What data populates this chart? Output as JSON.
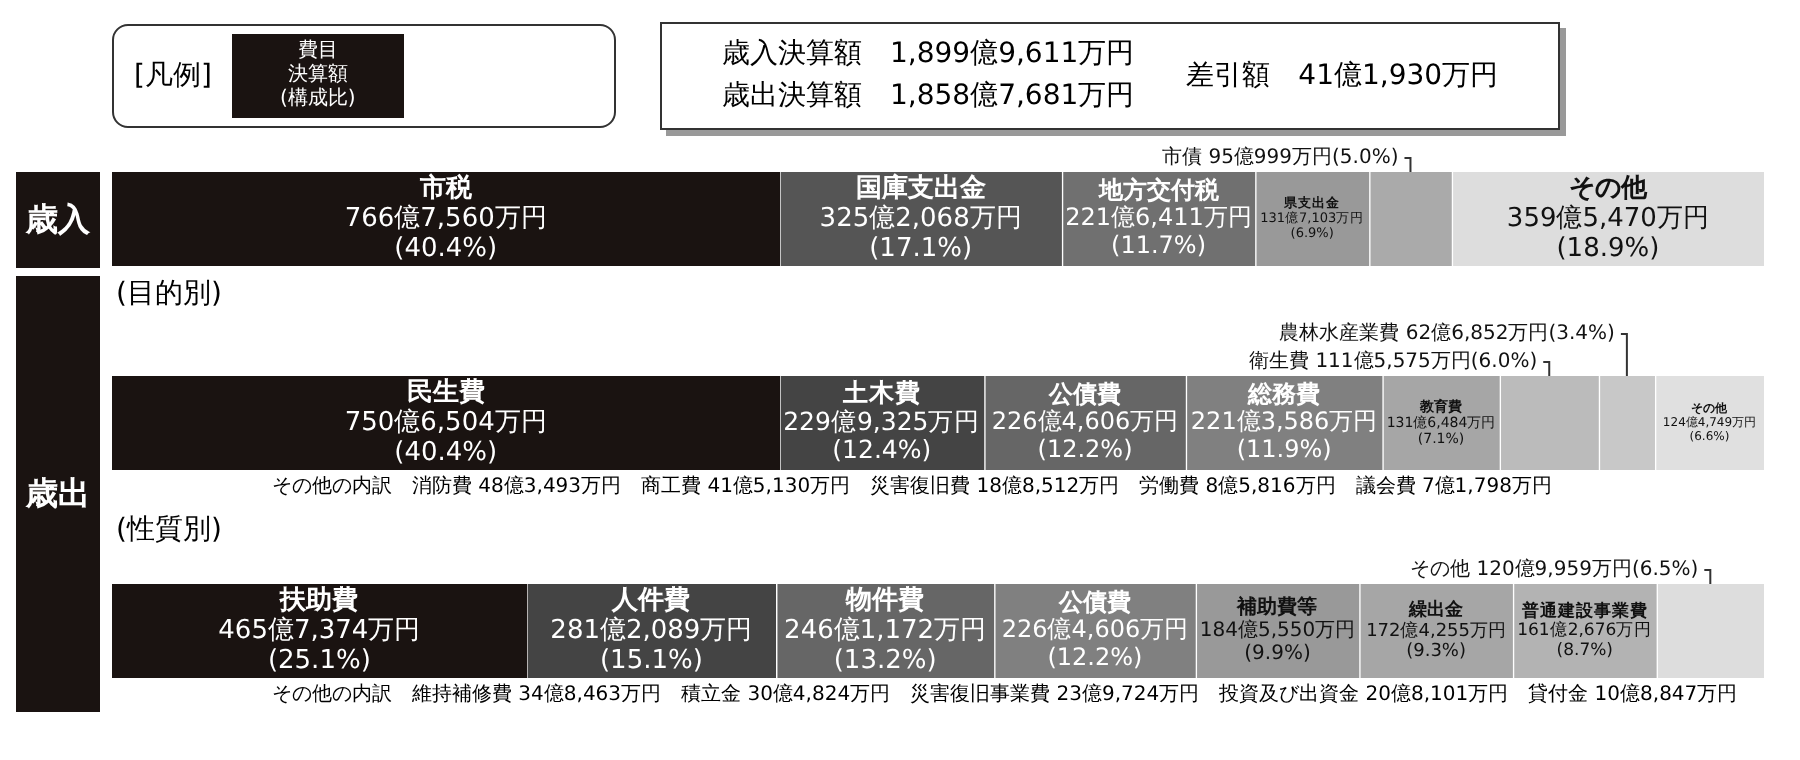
{
  "chart_data": [
    {
      "type": "bar",
      "orientation": "horizontal",
      "stacked": true,
      "categories": [
        null
      ],
      "ylabel": "歳入",
      "tick_labels": false,
      "legend": false,
      "annotations": [
        "[凡例]",
        "費目",
        "決算額",
        "(構成比)",
        "歳入決算額　1,899億9,611万円",
        "歳出決算額　1,858億7,681万円",
        "差引額　41億1,930万円"
      ],
      "series": [
        {
          "name": "市税",
          "color": "#1a1311",
          "values": [
            40.4
          ],
          "value_labels": [
            "766億7,560万円\n(40.4%)"
          ]
        },
        {
          "name": "国庫支出金",
          "color": "#555555",
          "values": [
            17.1
          ],
          "value_labels": [
            "325億2,068万円\n(17.1%)"
          ]
        },
        {
          "name": "地方交付税",
          "color": "#707070",
          "values": [
            11.7
          ],
          "value_labels": [
            "221億6,411万円\n(11.7%)"
          ]
        },
        {
          "name": "県支出金",
          "color": "#999999",
          "values": [
            6.9
          ],
          "value_labels": [
            "131億7,103万円\n(6.9%)"
          ]
        },
        {
          "name": "市債",
          "color": "#aaaaaa",
          "values": [
            5.0
          ],
          "value_labels": [
            "95億999万円(5.0%)"
          ]
        },
        {
          "name": "その他",
          "color": "#dddddd",
          "values": [
            18.9
          ],
          "value_labels": [
            "359億5,470万円\n(18.9%)"
          ]
        }
      ]
    },
    {
      "type": "bar",
      "orientation": "horizontal",
      "stacked": true,
      "categories": [
        null
      ],
      "ylabel": "歳出",
      "subtitle": "(目的別)",
      "tick_labels": false,
      "legend": false,
      "annotations": [
        "その他の内訳　消防費 48億3,493万円　商工費 41億5,130万円　災害復旧費 18億8,512万円　労働費 8億5,816万円　議会費 7億1,798万円"
      ],
      "series": [
        {
          "name": "民生費",
          "color": "#1a1311",
          "values": [
            40.4
          ],
          "value_labels": [
            "750億6,504万円\n(40.4%)"
          ]
        },
        {
          "name": "土木費",
          "color": "#444444",
          "values": [
            12.4
          ],
          "value_labels": [
            "229億9,325万円\n(12.4%)"
          ]
        },
        {
          "name": "公債費",
          "color": "#666666",
          "values": [
            12.2
          ],
          "value_labels": [
            "226億4,606万円\n(12.2%)"
          ]
        },
        {
          "name": "総務費",
          "color": "#808080",
          "values": [
            11.9
          ],
          "value_labels": [
            "221億3,586万円\n(11.9%)"
          ]
        },
        {
          "name": "教育費",
          "color": "#a6a6a6",
          "values": [
            7.1
          ],
          "value_labels": [
            "131億6,484万円\n(7.1%)"
          ]
        },
        {
          "name": "衛生費",
          "color": "#bbbbbb",
          "values": [
            6.0
          ],
          "value_labels": [
            "111億5,575万円(6.0%)"
          ]
        },
        {
          "name": "農林水産業費",
          "color": "#c8c8c8",
          "values": [
            3.4
          ],
          "value_labels": [
            "62億6,852万円(3.4%)"
          ]
        },
        {
          "name": "その他",
          "color": "#e0e0e0",
          "values": [
            6.6
          ],
          "value_labels": [
            "124億4,749万円\n(6.6%)"
          ]
        }
      ]
    },
    {
      "type": "bar",
      "orientation": "horizontal",
      "stacked": true,
      "categories": [
        null
      ],
      "subtitle": "(性質別)",
      "tick_labels": false,
      "legend": false,
      "annotations": [
        "その他の内訳　維持補修費 34億8,463万円　積立金 30億4,824万円　災害復旧事業費 23億9,724万円　投資及び出資金 20億8,101万円　貸付金 10億8,847万円"
      ],
      "series": [
        {
          "name": "扶助費",
          "color": "#1a1311",
          "values": [
            25.1
          ],
          "value_labels": [
            "465億7,374万円\n(25.1%)"
          ]
        },
        {
          "name": "人件費",
          "color": "#444444",
          "values": [
            15.1
          ],
          "value_labels": [
            "281億2,089万円\n(15.1%)"
          ]
        },
        {
          "name": "物件費",
          "color": "#666666",
          "values": [
            13.2
          ],
          "value_labels": [
            "246億1,172万円\n(13.2%)"
          ]
        },
        {
          "name": "公債費",
          "color": "#808080",
          "values": [
            12.2
          ],
          "value_labels": [
            "226億4,606万円\n(12.2%)"
          ]
        },
        {
          "name": "補助費等",
          "color": "#999999",
          "values": [
            9.9
          ],
          "value_labels": [
            "184億5,550万円\n(9.9%)"
          ]
        },
        {
          "name": "繰出金",
          "color": "#a6a6a6",
          "values": [
            9.3
          ],
          "value_labels": [
            "172億4,255万円\n(9.3%)"
          ]
        },
        {
          "name": "普通建設事業費",
          "color": "#b3b3b3",
          "values": [
            8.7
          ],
          "value_labels": [
            "161億2,676万円\n(8.7%)"
          ]
        },
        {
          "name": "その他",
          "color": "#dddddd",
          "values": [
            6.5
          ],
          "value_labels": [
            "120億9,959万円(6.5%)"
          ]
        }
      ]
    }
  ]
}
